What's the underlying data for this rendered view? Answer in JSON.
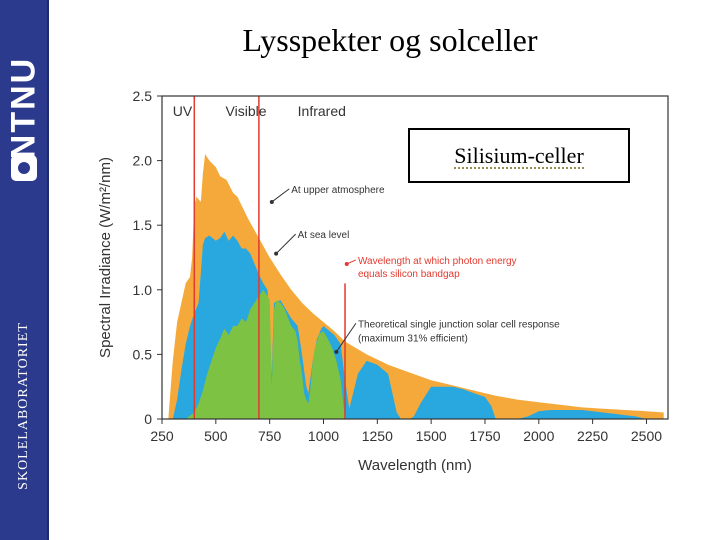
{
  "branding": {
    "logo_text": "NTNU",
    "lab_name": "SKOLELABORATORIET"
  },
  "slide": {
    "title": "Lysspekter og solceller",
    "callout": "Silisium-celler"
  },
  "chart_data": {
    "type": "area",
    "xlabel": "Wavelength (nm)",
    "ylabel": "Spectral Irradiance (W/m²/nm)",
    "xlim": [
      250,
      2600
    ],
    "ylim": [
      0,
      2.5
    ],
    "xticks": [
      250,
      500,
      750,
      1000,
      1250,
      1500,
      1750,
      2000,
      2250,
      2500
    ],
    "yticks": [
      0,
      0.5,
      1.0,
      1.5,
      2.0,
      2.5
    ],
    "ytick_labels": [
      "0",
      "0.5",
      "1.0",
      "1.5",
      "2.0",
      "2.5"
    ],
    "grid": false,
    "colors": {
      "upper_atmosphere": "#f6a93b",
      "sea_level": "#29a7df",
      "solar_cell": "#7dc242",
      "marker_line": "#e23a2f",
      "label_red": "#e23a2f"
    },
    "regions": [
      {
        "label": "UV",
        "x": 300
      },
      {
        "label": "Visible",
        "x": 545
      },
      {
        "label": "Infrared",
        "x": 880
      }
    ],
    "vertical_lines": [
      {
        "x": 400,
        "ytop": 2.5
      },
      {
        "x": 700,
        "ytop": 2.5
      },
      {
        "x": 1100,
        "ytop": 1.05
      }
    ],
    "series": [
      {
        "key": "upper_atmosphere",
        "x": [
          280,
          300,
          320,
          340,
          360,
          380,
          390,
          400,
          410,
          420,
          430,
          440,
          450,
          470,
          500,
          520,
          550,
          580,
          600,
          650,
          700,
          750,
          800,
          850,
          900,
          950,
          1000,
          1050,
          1100,
          1200,
          1300,
          1400,
          1500,
          1600,
          1700,
          1800,
          1900,
          2000,
          2100,
          2200,
          2300,
          2400,
          2500,
          2580
        ],
        "y": [
          0.02,
          0.45,
          0.75,
          0.9,
          1.05,
          1.1,
          1.25,
          1.65,
          1.72,
          1.7,
          1.68,
          1.9,
          2.05,
          2.0,
          1.95,
          1.88,
          1.85,
          1.75,
          1.72,
          1.55,
          1.4,
          1.25,
          1.12,
          1.0,
          0.9,
          0.82,
          0.75,
          0.68,
          0.6,
          0.5,
          0.42,
          0.36,
          0.3,
          0.26,
          0.22,
          0.18,
          0.15,
          0.13,
          0.11,
          0.09,
          0.08,
          0.07,
          0.06,
          0.05
        ]
      },
      {
        "key": "sea_level",
        "x": [
          300,
          320,
          340,
          360,
          380,
          400,
          420,
          440,
          450,
          470,
          500,
          520,
          540,
          560,
          580,
          600,
          620,
          640,
          660,
          680,
          700,
          720,
          740,
          760,
          770,
          800,
          850,
          880,
          900,
          920,
          930,
          950,
          970,
          990,
          1000,
          1050,
          1080,
          1100,
          1120,
          1130,
          1160,
          1200,
          1250,
          1300,
          1340,
          1360,
          1400,
          1420,
          1450,
          1500,
          1550,
          1600,
          1650,
          1700,
          1750,
          1780,
          1800,
          1850,
          1900,
          1950,
          2000,
          2050,
          2100,
          2150,
          2200,
          2250,
          2300,
          2350,
          2400,
          2450,
          2500
        ],
        "y": [
          0.0,
          0.15,
          0.38,
          0.58,
          0.72,
          0.82,
          0.9,
          1.35,
          1.4,
          1.42,
          1.38,
          1.4,
          1.45,
          1.38,
          1.42,
          1.38,
          1.32,
          1.32,
          1.28,
          1.2,
          1.12,
          1.05,
          1.0,
          0.35,
          0.9,
          0.92,
          0.78,
          0.72,
          0.5,
          0.25,
          0.2,
          0.45,
          0.62,
          0.7,
          0.72,
          0.65,
          0.58,
          0.3,
          0.08,
          0.15,
          0.35,
          0.45,
          0.42,
          0.35,
          0.05,
          0.0,
          0.0,
          0.02,
          0.12,
          0.25,
          0.25,
          0.25,
          0.23,
          0.2,
          0.17,
          0.1,
          0.0,
          0.0,
          0.0,
          0.02,
          0.06,
          0.07,
          0.07,
          0.07,
          0.07,
          0.06,
          0.05,
          0.04,
          0.03,
          0.02,
          0.0
        ]
      },
      {
        "key": "solar_cell",
        "x": [
          360,
          400,
          420,
          440,
          460,
          480,
          500,
          520,
          540,
          560,
          580,
          600,
          620,
          640,
          660,
          680,
          700,
          720,
          740,
          750,
          760,
          770,
          780,
          800,
          820,
          850,
          870,
          880,
          890,
          900,
          910,
          920,
          930,
          940,
          950,
          960,
          970,
          980,
          1000,
          1020,
          1040,
          1060,
          1080,
          1100
        ],
        "y": [
          0.0,
          0.05,
          0.12,
          0.22,
          0.35,
          0.45,
          0.55,
          0.62,
          0.7,
          0.65,
          0.72,
          0.72,
          0.78,
          0.75,
          0.85,
          0.9,
          0.95,
          1.0,
          0.95,
          0.92,
          0.25,
          0.85,
          0.92,
          0.9,
          0.85,
          0.72,
          0.68,
          0.6,
          0.45,
          0.35,
          0.2,
          0.15,
          0.12,
          0.25,
          0.45,
          0.55,
          0.6,
          0.66,
          0.68,
          0.62,
          0.55,
          0.45,
          0.3,
          0.0
        ]
      }
    ],
    "annotations": [
      {
        "text": "At upper atmosphere",
        "x": 850,
        "y": 1.75,
        "ax": 760,
        "ay": 1.68,
        "color": "#333333"
      },
      {
        "text": "At sea level",
        "x": 880,
        "y": 1.4,
        "ax": 780,
        "ay": 1.28,
        "color": "#333333"
      },
      {
        "text": "Wavelength at which photon energy",
        "x": 1160,
        "y": 1.2,
        "ax": 1108,
        "ay": 1.2,
        "color": "#e23a2f"
      },
      {
        "text": "equals silicon bandgap",
        "x": 1160,
        "y": 1.1,
        "color": "#e23a2f"
      },
      {
        "text": "Theoretical single junction solar cell response",
        "x": 1160,
        "y": 0.71,
        "ax": 1060,
        "ay": 0.52,
        "color": "#333333"
      },
      {
        "text": "(maximum 31% efficient)",
        "x": 1160,
        "y": 0.6,
        "color": "#333333"
      }
    ]
  }
}
